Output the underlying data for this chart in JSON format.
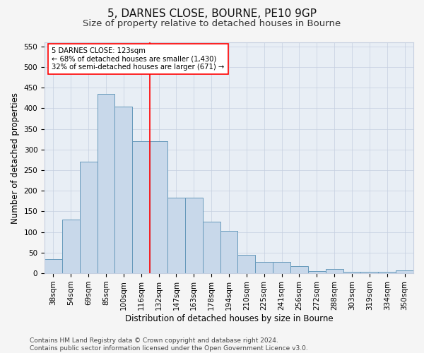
{
  "title": "5, DARNES CLOSE, BOURNE, PE10 9GP",
  "subtitle": "Size of property relative to detached houses in Bourne",
  "xlabel": "Distribution of detached houses by size in Bourne",
  "ylabel": "Number of detached properties",
  "categories": [
    "38sqm",
    "54sqm",
    "69sqm",
    "85sqm",
    "100sqm",
    "116sqm",
    "132sqm",
    "147sqm",
    "163sqm",
    "178sqm",
    "194sqm",
    "210sqm",
    "225sqm",
    "241sqm",
    "256sqm",
    "272sqm",
    "288sqm",
    "303sqm",
    "319sqm",
    "334sqm",
    "350sqm"
  ],
  "values": [
    35,
    130,
    270,
    435,
    405,
    320,
    320,
    183,
    183,
    125,
    103,
    45,
    28,
    28,
    17,
    5,
    10,
    3,
    3,
    3,
    7
  ],
  "bar_color": "#c8d8ea",
  "bar_edge_color": "#6699bb",
  "vline_x": 5.5,
  "vline_color": "red",
  "annotation_line1": "5 DARNES CLOSE: 123sqm",
  "annotation_line2": "← 68% of detached houses are smaller (1,430)",
  "annotation_line3": "32% of semi-detached houses are larger (671) →",
  "annotation_box_color": "white",
  "annotation_box_edge": "red",
  "ylim": [
    0,
    560
  ],
  "yticks": [
    0,
    50,
    100,
    150,
    200,
    250,
    300,
    350,
    400,
    450,
    500,
    550
  ],
  "footer": "Contains HM Land Registry data © Crown copyright and database right 2024.\nContains public sector information licensed under the Open Government Licence v3.0.",
  "bg_color": "#f5f5f5",
  "plot_bg_color": "#e8eef5",
  "grid_color": "#c5cfe0",
  "title_fontsize": 11,
  "subtitle_fontsize": 9.5,
  "label_fontsize": 8.5,
  "tick_fontsize": 7.5,
  "footer_fontsize": 6.5
}
